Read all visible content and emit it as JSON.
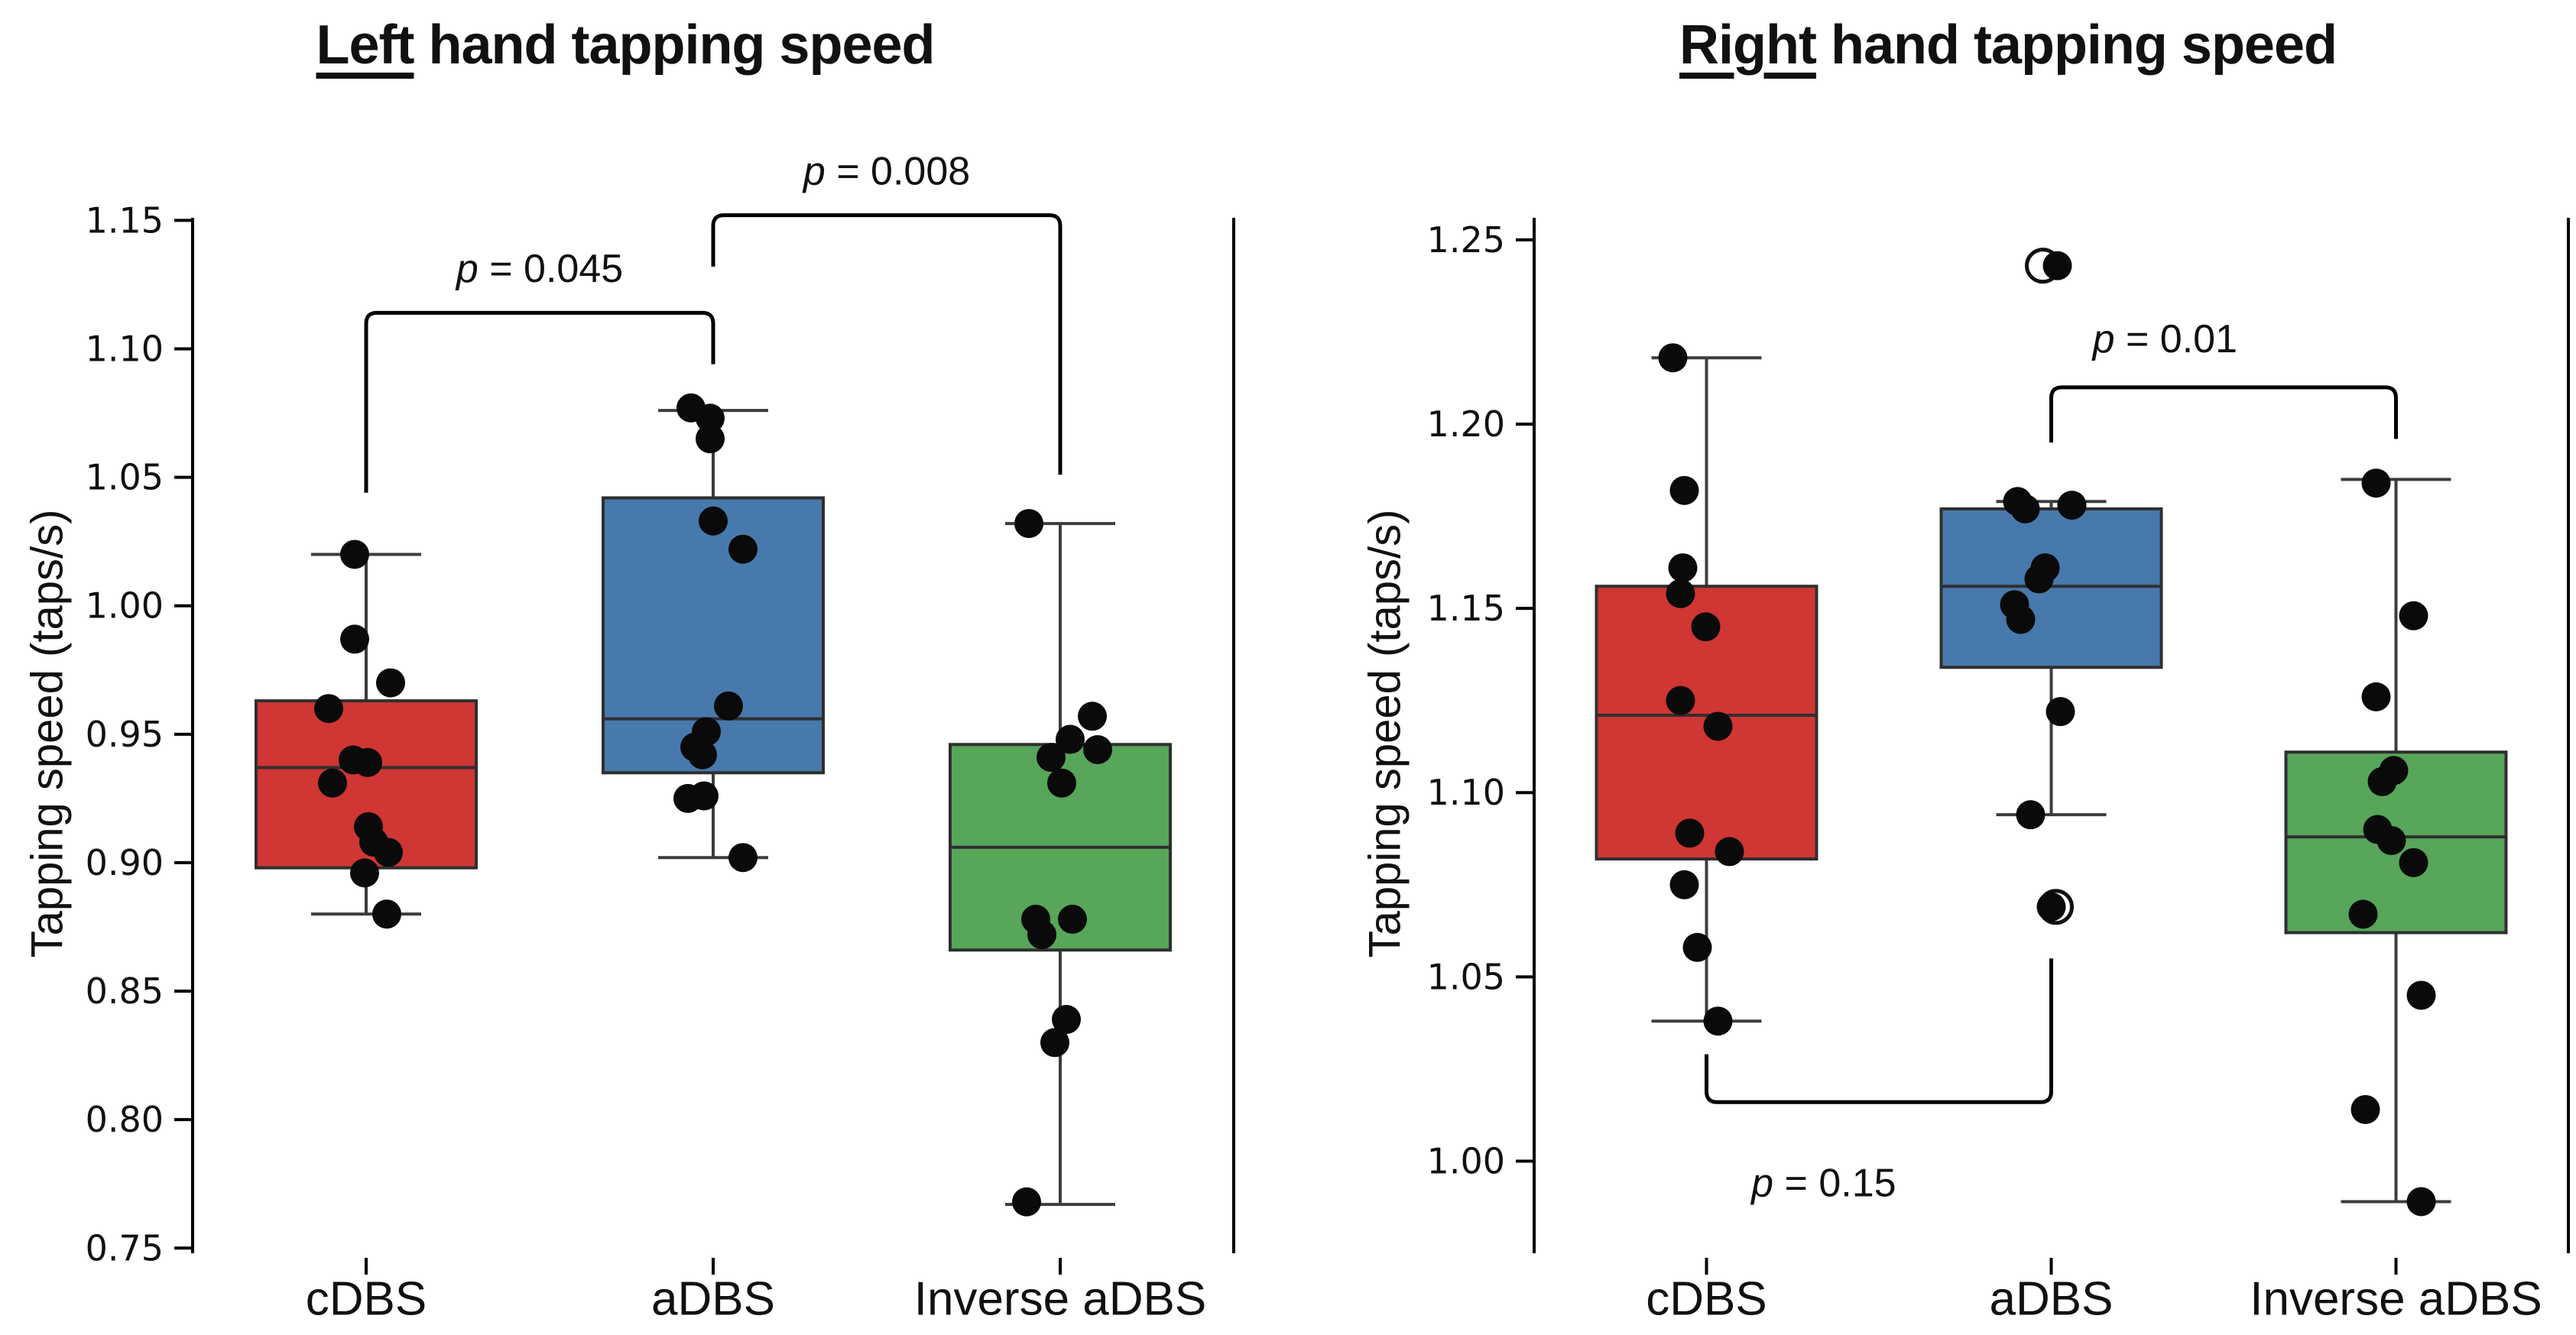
{
  "chart_data": {
    "type": "box",
    "description": "Two box plots with overlaid individual data points comparing tapping speed across DBS stimulation conditions",
    "panels": [
      {
        "type": "box",
        "title": {
          "underlined": "Left",
          "rest": " hand tapping speed"
        },
        "ylabel": "Tapping speed (taps/s)",
        "ylim": [
          0.748,
          1.151
        ],
        "yticks": {
          "values": [
            0.75,
            0.8,
            0.85,
            0.9,
            0.95,
            1.0,
            1.05,
            1.1,
            1.15
          ],
          "labels": [
            "0.75",
            "0.80",
            "0.85",
            "0.90",
            "0.95",
            "1.00",
            "1.05",
            "1.10",
            "1.15"
          ]
        },
        "categories": [
          "cDBS",
          "aDBS",
          "Inverse aDBS"
        ],
        "boxes": [
          {
            "category": "cDBS",
            "color": "#cf3634",
            "stats": {
              "whisker_low": 0.88,
              "q1": 0.898,
              "median": 0.937,
              "q3": 0.963,
              "whisker_high": 1.02
            },
            "points": [
              [
                1.02,
                -15
              ],
              [
                0.987,
                -15
              ],
              [
                0.97,
                32
              ],
              [
                0.96,
                -49
              ],
              [
                0.94,
                -17
              ],
              [
                0.939,
                2
              ],
              [
                0.931,
                -44
              ],
              [
                0.914,
                3
              ],
              [
                0.908,
                10
              ],
              [
                0.904,
                29
              ],
              [
                0.896,
                -2
              ],
              [
                0.88,
                27
              ]
            ],
            "fliers": []
          },
          {
            "category": "aDBS",
            "color": "#4779ac",
            "stats": {
              "whisker_low": 0.902,
              "q1": 0.935,
              "median": 0.956,
              "q3": 1.042,
              "whisker_high": 1.076
            },
            "points": [
              [
                1.077,
                -29
              ],
              [
                1.073,
                -4
              ],
              [
                1.065,
                -4
              ],
              [
                1.033,
                0
              ],
              [
                1.022,
                39
              ],
              [
                0.961,
                20
              ],
              [
                0.951,
                -9
              ],
              [
                0.945,
                -24
              ],
              [
                0.942,
                -14
              ],
              [
                0.926,
                -12
              ],
              [
                0.925,
                -33
              ],
              [
                0.902,
                39
              ]
            ],
            "fliers": []
          },
          {
            "category": "Inverse aDBS",
            "color": "#57a65a",
            "stats": {
              "whisker_low": 0.767,
              "q1": 0.866,
              "median": 0.906,
              "q3": 0.946,
              "whisker_high": 1.032
            },
            "points": [
              [
                1.032,
                -41
              ],
              [
                0.957,
                42
              ],
              [
                0.948,
                13
              ],
              [
                0.944,
                49
              ],
              [
                0.941,
                -12
              ],
              [
                0.931,
                2
              ],
              [
                0.878,
                -32
              ],
              [
                0.878,
                16
              ],
              [
                0.872,
                -24
              ],
              [
                0.839,
                8
              ],
              [
                0.83,
                -7
              ],
              [
                0.768,
                -44
              ]
            ],
            "fliers": []
          }
        ],
        "annotations": [
          {
            "label": "p = 0.045",
            "p_symbol": "p",
            "p_rest": " = 0.045",
            "cat_from": 0,
            "cat_to": 1,
            "bar_y": 1.114,
            "leg_from_y": 1.044,
            "leg_to_y": 1.094,
            "text_x_cat": 0.5,
            "text_y": 1.131,
            "side": "above"
          },
          {
            "label": "p = 0.008",
            "p_symbol": "p",
            "p_rest": " = 0.008",
            "cat_from": 1,
            "cat_to": 2,
            "bar_y": 1.152,
            "leg_from_y": 1.132,
            "leg_to_y": 1.051,
            "text_x_cat": 1.5,
            "text_y": 1.169,
            "side": "above"
          }
        ]
      },
      {
        "type": "box",
        "title": {
          "underlined": "Right",
          "rest": " hand tapping speed"
        },
        "ylabel": "Tapping speed (taps/s)",
        "ylim": [
          0.975,
          1.256
        ],
        "yticks": {
          "values": [
            1.0,
            1.05,
            1.1,
            1.15,
            1.2,
            1.25
          ],
          "labels": [
            "1.00",
            "1.05",
            "1.10",
            "1.15",
            "1.20",
            "1.25"
          ]
        },
        "categories": [
          "cDBS",
          "aDBS",
          "Inverse aDBS"
        ],
        "boxes": [
          {
            "category": "cDBS",
            "color": "#cf3634",
            "stats": {
              "whisker_low": 1.038,
              "q1": 1.082,
              "median": 1.121,
              "q3": 1.156,
              "whisker_high": 1.218
            },
            "points": [
              [
                1.218,
                -44
              ],
              [
                1.182,
                -29
              ],
              [
                1.161,
                -31
              ],
              [
                1.154,
                -34
              ],
              [
                1.145,
                -1
              ],
              [
                1.125,
                -34
              ],
              [
                1.118,
                15
              ],
              [
                1.089,
                -22
              ],
              [
                1.084,
                30
              ],
              [
                1.075,
                -29
              ],
              [
                1.058,
                -12
              ],
              [
                1.038,
                15
              ]
            ],
            "fliers": []
          },
          {
            "category": "aDBS",
            "color": "#4779ac",
            "stats": {
              "whisker_low": 1.094,
              "q1": 1.134,
              "median": 1.156,
              "q3": 1.177,
              "whisker_high": 1.179
            },
            "points": [
              [
                1.243,
                8
              ],
              [
                1.179,
                -44
              ],
              [
                1.177,
                -34
              ],
              [
                1.178,
                27
              ],
              [
                1.161,
                -8
              ],
              [
                1.158,
                -16
              ],
              [
                1.151,
                -48
              ],
              [
                1.147,
                -40
              ],
              [
                1.122,
                12
              ],
              [
                1.094,
                -27
              ],
              [
                1.069,
                0
              ]
            ],
            "fliers": [
              [
                1.243,
                -11
              ],
              [
                1.069,
                6
              ]
            ]
          },
          {
            "category": "Inverse aDBS",
            "color": "#57a65a",
            "stats": {
              "whisker_low": 0.989,
              "q1": 1.062,
              "median": 1.088,
              "q3": 1.111,
              "whisker_high": 1.185
            },
            "points": [
              [
                1.184,
                -26
              ],
              [
                1.148,
                23
              ],
              [
                1.126,
                -26
              ],
              [
                1.106,
                -3
              ],
              [
                1.103,
                -18
              ],
              [
                1.09,
                -24
              ],
              [
                1.087,
                -6
              ],
              [
                1.081,
                23
              ],
              [
                1.067,
                -43
              ],
              [
                1.045,
                33
              ],
              [
                1.014,
                -40
              ],
              [
                0.989,
                33
              ]
            ],
            "fliers": []
          }
        ],
        "annotations": [
          {
            "label": "p = 0.01",
            "p_symbol": "p",
            "p_rest": " = 0.01",
            "cat_from": 1,
            "cat_to": 2,
            "bar_y": 1.21,
            "leg_from_y": 1.195,
            "leg_to_y": 1.196,
            "text_x_cat": 1.33,
            "text_y": 1.223,
            "side": "above"
          },
          {
            "label": "p = 0.15",
            "p_symbol": "p",
            "p_rest": " = 0.15",
            "cat_from": 0,
            "cat_to": 1,
            "bar_y": 1.016,
            "leg_from_y": 1.029,
            "leg_to_y": 1.055,
            "text_x_cat": 0.34,
            "text_y": 0.994,
            "side": "below"
          }
        ]
      }
    ],
    "colors": {
      "cdbs": "#cf3634",
      "adbs": "#4779ac",
      "inverse_adbs": "#57a65a",
      "points": "#0a0a0a",
      "axis": "#000000"
    }
  }
}
